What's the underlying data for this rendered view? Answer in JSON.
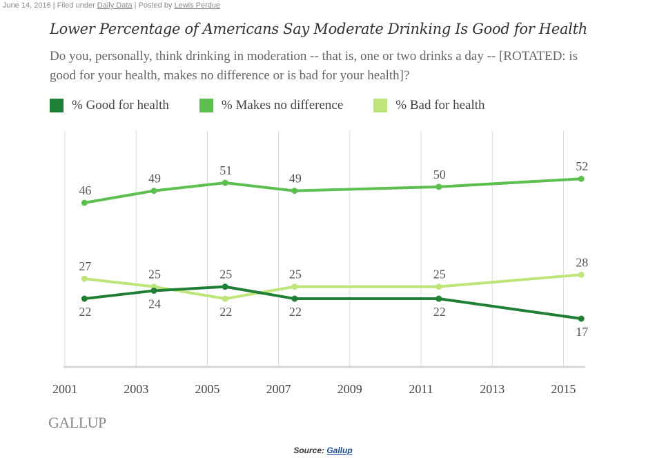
{
  "byline": {
    "date": "June 14, 2016",
    "filed_prefix": " | Filed under ",
    "category": "Daily Data",
    "posted_prefix": " | Posted by ",
    "author": "Lewis Perdue"
  },
  "footer": {
    "logo_text": "GALLUP",
    "source_label": "Source: ",
    "source_link": "Gallup"
  },
  "chart_data": {
    "type": "line",
    "title": "Lower Percentage of Americans Say Moderate Drinking Is Good for Health",
    "subtitle": "Do you, personally, think drinking in moderation -- that is, one or two drinks a day -- [ROTATED: is good for your health, makes no difference or is bad for your health]?",
    "xlabel": "",
    "ylabel": "",
    "x_ticks": [
      "2001",
      "2003",
      "2005",
      "2007",
      "2009",
      "2011",
      "2013",
      "2015"
    ],
    "x_range": [
      2001,
      2015.8
    ],
    "y_range": [
      10,
      60
    ],
    "grid": "vertical",
    "legend_position": "top",
    "x": [
      2001.55,
      2003.5,
      2005.5,
      2007.45,
      2011.5,
      2015.5
    ],
    "series": [
      {
        "name": "% Good for health",
        "color": "#1e7f35",
        "values": [
          22,
          24,
          25,
          22,
          22,
          17
        ],
        "label_pos": [
          "below",
          "below",
          "above",
          "below",
          "below",
          "below"
        ]
      },
      {
        "name": "% Makes no difference",
        "color": "#5cbf4f",
        "values": [
          46,
          49,
          51,
          49,
          50,
          52
        ],
        "label_pos": [
          "above",
          "above",
          "above",
          "above",
          "above",
          "above"
        ]
      },
      {
        "name": "% Bad for health",
        "color": "#bde57a",
        "values": [
          27,
          25,
          22,
          25,
          25,
          28
        ],
        "label_pos": [
          "above",
          "above",
          "below",
          "above",
          "above",
          "above"
        ]
      }
    ]
  }
}
